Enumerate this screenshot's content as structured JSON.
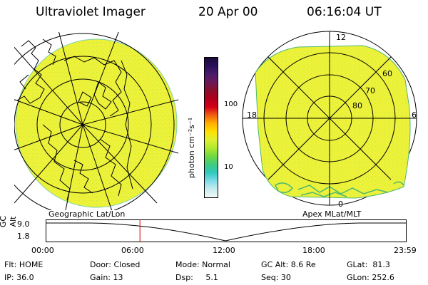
{
  "header": {
    "instrument": "Ultraviolet Imager",
    "date": "20 Apr 00",
    "time": "06:16:04 UT"
  },
  "colors": {
    "image_fill": "#ecf23a",
    "grid": "#000000",
    "marker": "#cc0000",
    "contour": "#4fb870"
  },
  "colorbar": {
    "label": "photon cm⁻²s⁻¹",
    "ticks": [
      "100",
      "10"
    ],
    "colors": [
      "#1a0a3a",
      "#2a0f5a",
      "#4a1a6a",
      "#6a1a58",
      "#8a0f2a",
      "#b0001a",
      "#d4001a",
      "#f06010",
      "#ffb000",
      "#ffe000",
      "#dcf030",
      "#b0e830",
      "#70d840",
      "#40cc80",
      "#30c8c0",
      "#80dce8",
      "#c8ecf0",
      "#f4f8f8"
    ]
  },
  "left_panel": {
    "caption": "Geographic Lat/Lon"
  },
  "right_panel": {
    "caption": "Apex MLat/MLT",
    "lat_labels": [
      "60",
      "70",
      "80"
    ],
    "mlt_labels": {
      "top": "12",
      "bottom": "0",
      "left": "18",
      "right": "6"
    }
  },
  "timeline": {
    "axis_label": "GC Alt",
    "y_labels": [
      "9.0",
      "1.8"
    ],
    "time_labels": [
      "00:00",
      "06:00",
      "12:00",
      "18:00",
      "23:59"
    ],
    "current_time_hours": 6.27
  },
  "status": {
    "row1": [
      "Flt: HOME",
      "Door: Closed",
      "Mode: Normal",
      "GC Alt: 8.6 Re",
      "GLat:  81.3"
    ],
    "row2": [
      "IP: 36.0",
      "Gain: 13",
      "Dsp:     5.1",
      "Seq: 30",
      "GLon: 252.6"
    ]
  }
}
